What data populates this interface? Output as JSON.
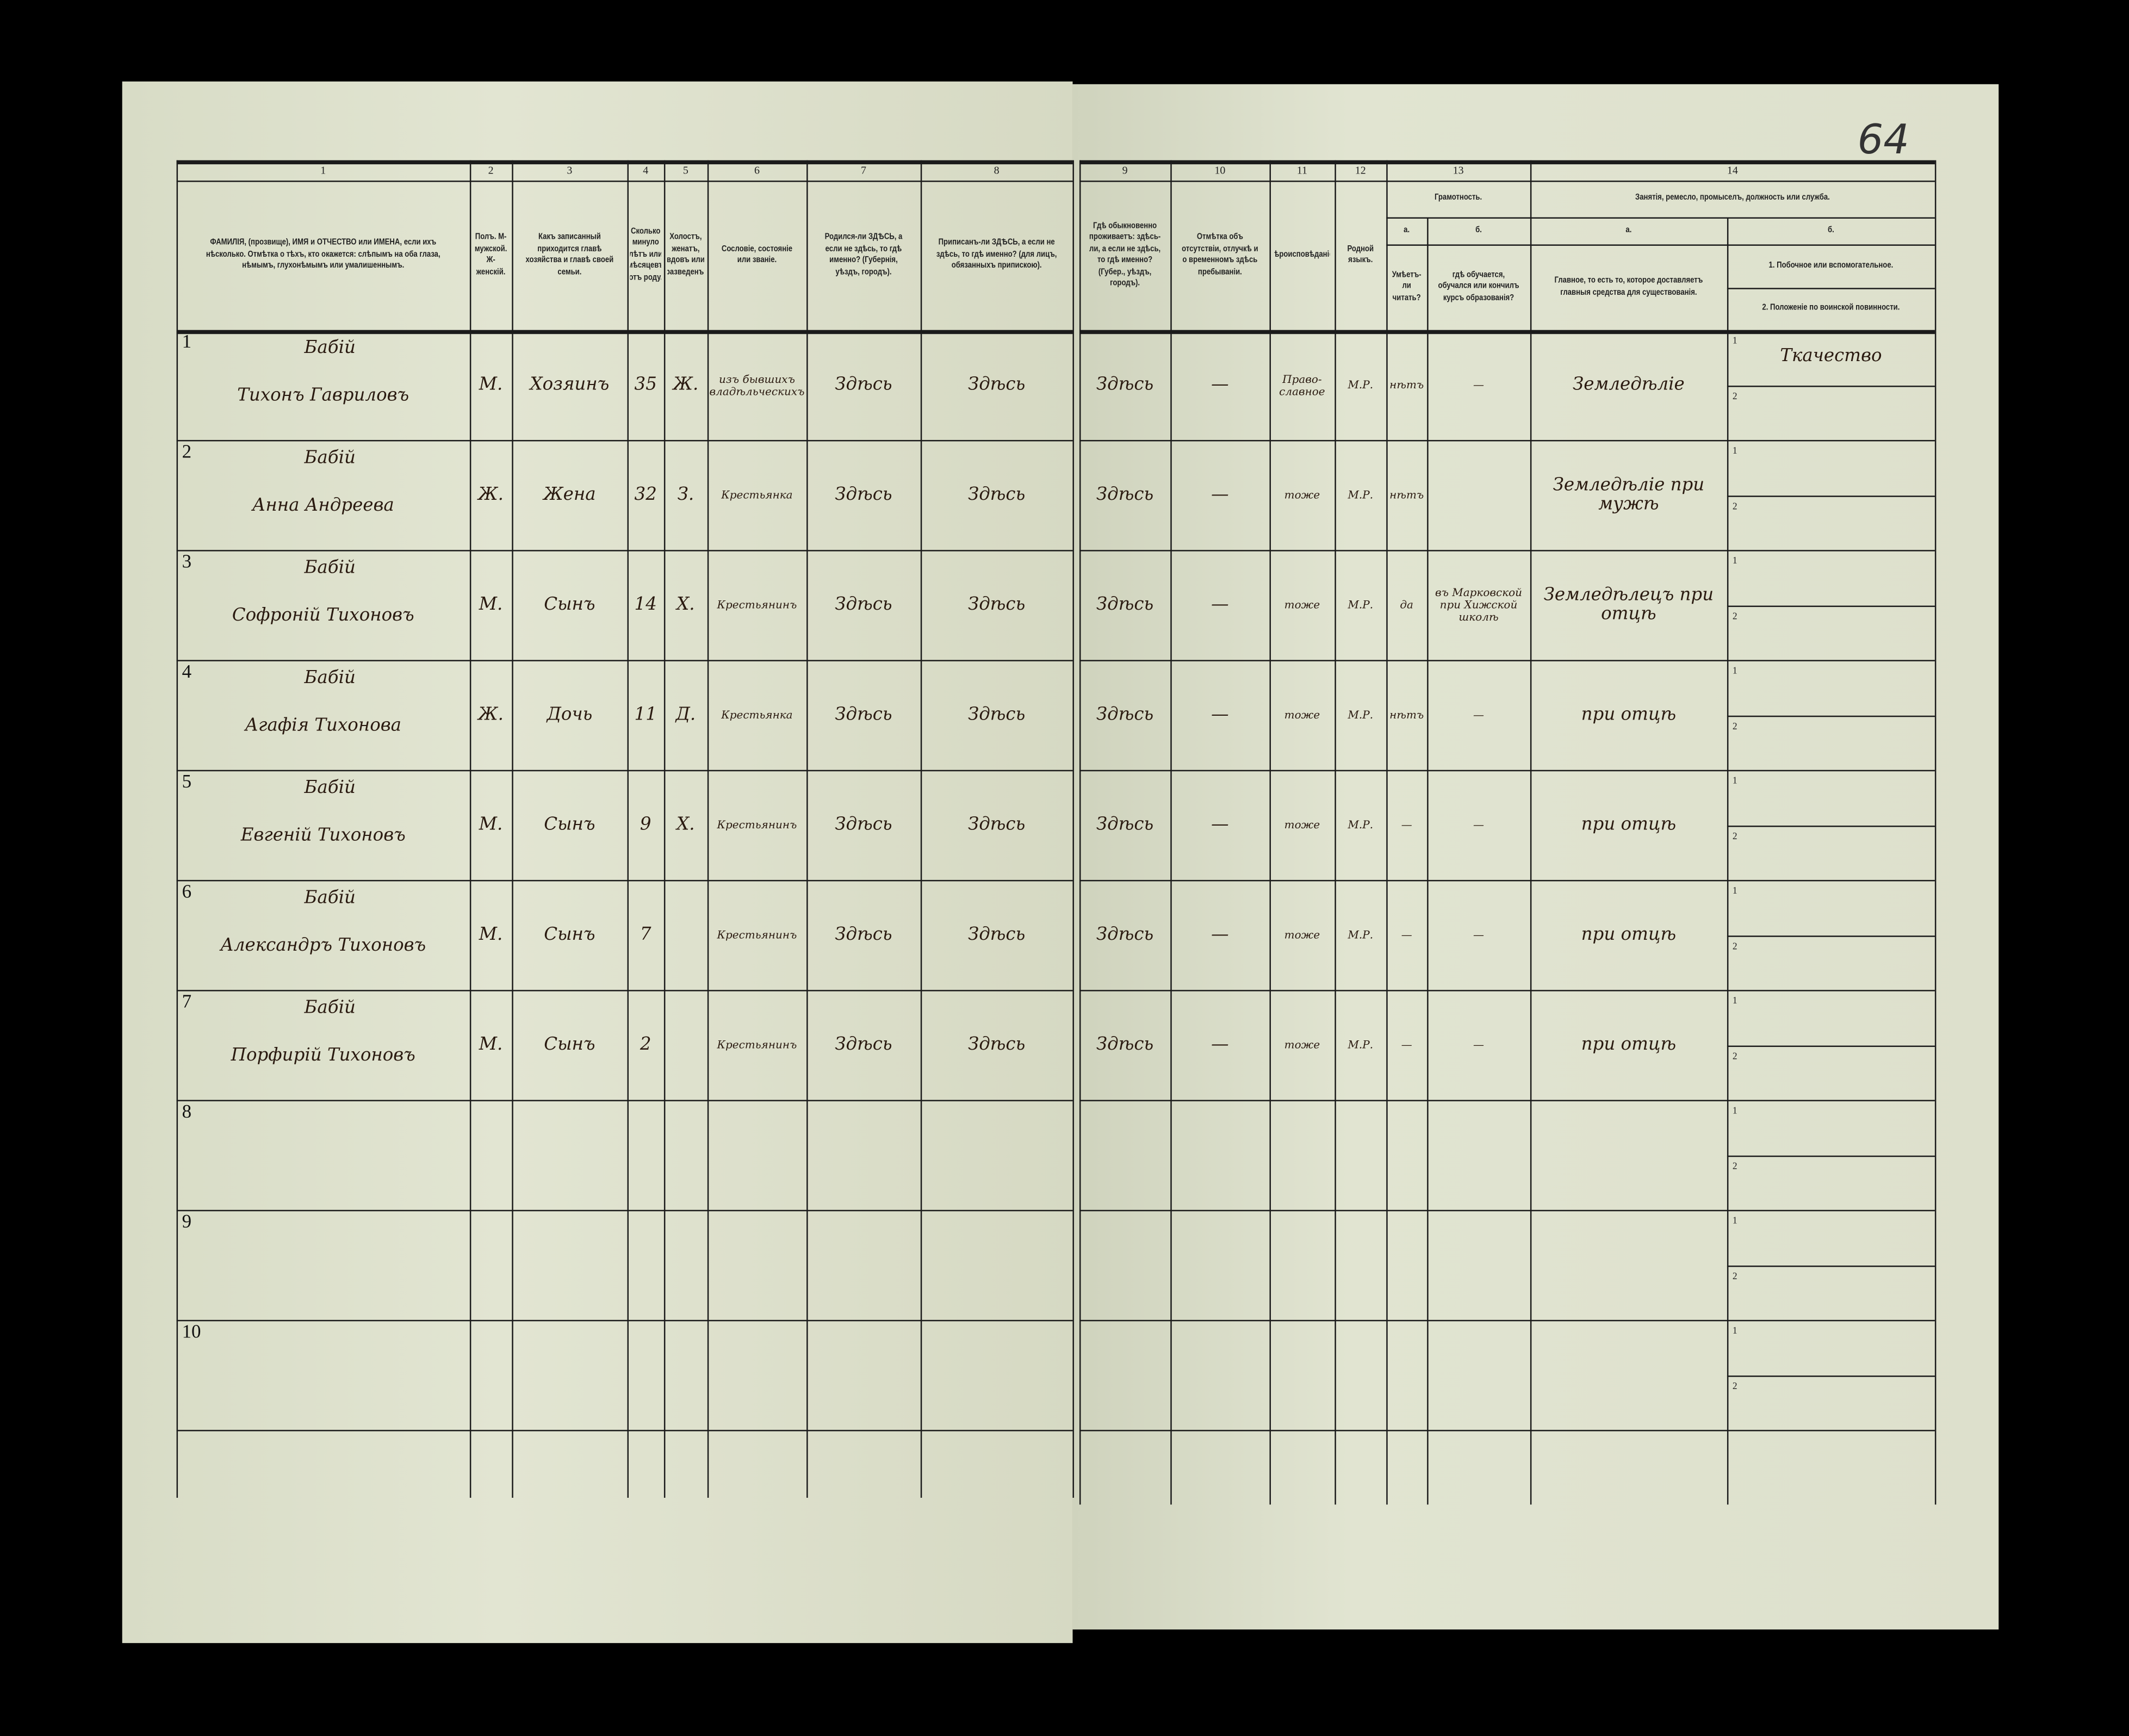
{
  "page_number": "64",
  "colors": {
    "paper": "#dfe3cf",
    "ink": "#2a1a10",
    "print": "#1b1b1b",
    "background": "#000000"
  },
  "headers": {
    "c1": {
      "num": "1",
      "text": "ФАМИЛІЯ, (прозвище), ИМЯ и ОТЧЕСТВО или ИМЕНА, если ихъ нѣсколько. Отмѣтка о тѣхъ, кто окажется: слѣпымъ на оба глаза, нѣмымъ, глухонѣмымъ или умалишеннымъ."
    },
    "c2": {
      "num": "2",
      "text": "Полъ. М-мужской. Ж-женскій."
    },
    "c3": {
      "num": "3",
      "text": "Какъ записанный приходится главѣ хозяйства и главѣ своей семьи."
    },
    "c4": {
      "num": "4",
      "text": "Сколько минуло лѣтъ или мѣсяцевъ отъ роду."
    },
    "c5": {
      "num": "5",
      "text": "Холостъ, женатъ, вдовъ или разведенъ."
    },
    "c6": {
      "num": "6",
      "text": "Сословіе, состояніе или званіе."
    },
    "c7": {
      "num": "7",
      "text": "Родился-ли ЗДѢСЬ, а если не здѣсь, то гдѣ именно? (Губернія, уѣздъ, городъ)."
    },
    "c8": {
      "num": "8",
      "text": "Приписанъ-ли ЗДѢСЬ, а если не здѣсь, то гдѣ именно? (для лицъ, обязанныхъ припискою)."
    },
    "c9": {
      "num": "9",
      "text": "Гдѣ обыкновенно проживаетъ: здѣсь-ли, а если не здѣсь, то гдѣ именно? (Губер., уѣздъ, городъ)."
    },
    "c10": {
      "num": "10",
      "text": "Отмѣтка объ отсутствіи, отлучкѣ и о временномъ здѣсь пребываніи."
    },
    "c11": {
      "num": "11",
      "text": "Вѣроисповѣданіе."
    },
    "c12": {
      "num": "12",
      "text": "Родной языкъ."
    },
    "c13": {
      "num": "13",
      "title": "Грамотность.",
      "a_letter": "а.",
      "a_text": "Умѣетъ-ли читать?",
      "b_letter": "б.",
      "b_text": "гдѣ обучается, обучался или кончилъ курсъ образованія?"
    },
    "c14": {
      "num": "14",
      "title": "Занятія, ремесло, промыселъ, должность или служба.",
      "a_letter": "а.",
      "a_text": "Главное, то есть то, которое доставляетъ главныя средства для существованія.",
      "b_letter": "б.",
      "b1_text": "1. Побочное или вспомогательное.",
      "b2_text": "2. Положеніе по воинской повинности."
    }
  },
  "rows": [
    {
      "n": "1",
      "surname": "Бабій",
      "name": "Тихонъ Гавриловъ",
      "sex": "М.",
      "relation": "Хозяинъ",
      "age": "35",
      "marital": "Ж.",
      "estate": "изъ бывшихъ владѣльческихъ",
      "born": "Здѣсь",
      "registered": "Здѣсь",
      "lives": "Здѣсь",
      "absence": "—",
      "religion": "Право-славное",
      "language": "М.Р.",
      "reads": "нѣтъ",
      "school": "—",
      "occupation": "Земледѣліе",
      "secondary": "Ткачество",
      "sub1": "1",
      "sub2": "2"
    },
    {
      "n": "2",
      "surname": "Бабій",
      "name": "Анна Андреева",
      "sex": "Ж.",
      "relation": "Жена",
      "age": "32",
      "marital": "З.",
      "estate": "Крестьянка",
      "born": "Здѣсь",
      "registered": "Здѣсь",
      "lives": "Здѣсь",
      "absence": "—",
      "religion": "тоже",
      "language": "М.Р.",
      "reads": "нѣтъ",
      "school": "",
      "occupation": "Земледѣліе при мужѣ",
      "secondary": "",
      "sub1": "1",
      "sub2": "2"
    },
    {
      "n": "3",
      "surname": "Бабій",
      "name": "Софроній Тихоновъ",
      "sex": "М.",
      "relation": "Сынъ",
      "age": "14",
      "marital": "Х.",
      "estate": "Крестьянинъ",
      "born": "Здѣсь",
      "registered": "Здѣсь",
      "lives": "Здѣсь",
      "absence": "—",
      "religion": "тоже",
      "language": "М.Р.",
      "reads": "да",
      "school": "въ Марковской при Хижской школѣ",
      "occupation": "Земледѣлецъ при отцѣ",
      "secondary": "",
      "sub1": "1",
      "sub2": "2"
    },
    {
      "n": "4",
      "surname": "Бабій",
      "name": "Агафія Тихонова",
      "sex": "Ж.",
      "relation": "Дочь",
      "age": "11",
      "marital": "Д.",
      "estate": "Крестьянка",
      "born": "Здѣсь",
      "registered": "Здѣсь",
      "lives": "Здѣсь",
      "absence": "—",
      "religion": "тоже",
      "language": "М.Р.",
      "reads": "нѣтъ",
      "school": "—",
      "occupation": "при отцѣ",
      "secondary": "",
      "sub1": "1",
      "sub2": "2"
    },
    {
      "n": "5",
      "surname": "Бабій",
      "name": "Евгеній Тихоновъ",
      "sex": "М.",
      "relation": "Сынъ",
      "age": "9",
      "marital": "Х.",
      "estate": "Крестьянинъ",
      "born": "Здѣсь",
      "registered": "Здѣсь",
      "lives": "Здѣсь",
      "absence": "—",
      "religion": "тоже",
      "language": "М.Р.",
      "reads": "—",
      "school": "—",
      "occupation": "при отцѣ",
      "secondary": "",
      "sub1": "1",
      "sub2": "2"
    },
    {
      "n": "6",
      "surname": "Бабій",
      "name": "Александръ Тихоновъ",
      "sex": "М.",
      "relation": "Сынъ",
      "age": "7",
      "marital": "",
      "estate": "Крестьянинъ",
      "born": "Здѣсь",
      "registered": "Здѣсь",
      "lives": "Здѣсь",
      "absence": "—",
      "religion": "тоже",
      "language": "М.Р.",
      "reads": "—",
      "school": "—",
      "occupation": "при отцѣ",
      "secondary": "",
      "sub1": "1",
      "sub2": "2"
    },
    {
      "n": "7",
      "surname": "Бабій",
      "name": "Порфирій Тихоновъ",
      "sex": "М.",
      "relation": "Сынъ",
      "age": "2",
      "marital": "",
      "estate": "Крестьянинъ",
      "born": "Здѣсь",
      "registered": "Здѣсь",
      "lives": "Здѣсь",
      "absence": "—",
      "religion": "тоже",
      "language": "М.Р.",
      "reads": "—",
      "school": "—",
      "occupation": "при отцѣ",
      "secondary": "",
      "sub1": "1",
      "sub2": "2"
    },
    {
      "n": "8",
      "surname": "",
      "name": "",
      "sex": "",
      "relation": "",
      "age": "",
      "marital": "",
      "estate": "",
      "born": "",
      "registered": "",
      "lives": "",
      "absence": "",
      "religion": "",
      "language": "",
      "reads": "",
      "school": "",
      "occupation": "",
      "secondary": "",
      "sub1": "1",
      "sub2": "2"
    },
    {
      "n": "9",
      "surname": "",
      "name": "",
      "sex": "",
      "relation": "",
      "age": "",
      "marital": "",
      "estate": "",
      "born": "",
      "registered": "",
      "lives": "",
      "absence": "",
      "religion": "",
      "language": "",
      "reads": "",
      "school": "",
      "occupation": "",
      "secondary": "",
      "sub1": "1",
      "sub2": "2"
    },
    {
      "n": "10",
      "surname": "",
      "name": "",
      "sex": "",
      "relation": "",
      "age": "",
      "marital": "",
      "estate": "",
      "born": "",
      "registered": "",
      "lives": "",
      "absence": "",
      "religion": "",
      "language": "",
      "reads": "",
      "school": "",
      "occupation": "",
      "secondary": "",
      "sub1": "1",
      "sub2": "2"
    }
  ]
}
